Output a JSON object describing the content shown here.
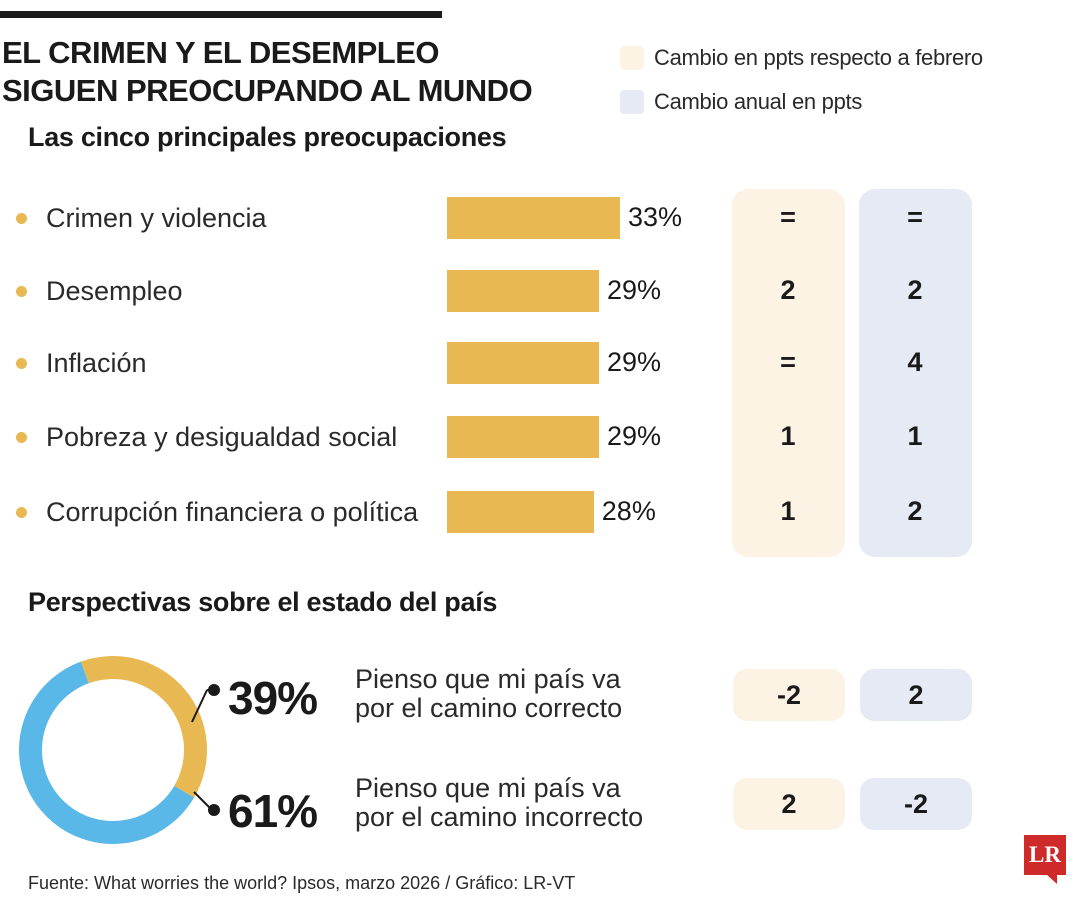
{
  "header": {
    "title_line1": "EL CRIMEN Y EL DESEMPLEO",
    "title_line2": "SIGUEN PREOCUPANDO AL MUNDO"
  },
  "legend": [
    {
      "label": "Cambio en ppts respecto a febrero",
      "color": "#fcf3e4"
    },
    {
      "label": "Cambio anual en ppts",
      "color": "#e6eaf5"
    }
  ],
  "colors": {
    "bar": "#e8b953",
    "bullet": "#e8b953",
    "monthly_bg": "#fcf3e4",
    "annual_bg": "#e6eaf5",
    "donut_right": "#e8b953",
    "donut_wrong": "#5ab8e8"
  },
  "chart_data": [
    {
      "type": "bar",
      "title": "Las cinco principales preocupaciones",
      "categories": [
        "Crimen y violencia",
        "Desempleo",
        "Inflación",
        "Pobreza y desigualdad social",
        "Corrupción financiera o política"
      ],
      "values": [
        33,
        29,
        29,
        29,
        28
      ],
      "value_labels": [
        "33%",
        "29%",
        "29%",
        "29%",
        "28%"
      ],
      "xlim": [
        0,
        33
      ],
      "monthly_change": [
        "=",
        "2",
        "=",
        "1",
        "1"
      ],
      "annual_change": [
        "=",
        "2",
        "4",
        "1",
        "2"
      ]
    },
    {
      "type": "pie",
      "title": "Perspectivas sobre el estado del país",
      "slices": [
        {
          "value": 39,
          "label": "39%",
          "statement_line1": "Pienso que mi país va",
          "statement_line2": "por el camino correcto",
          "monthly_change": "-2",
          "annual_change": "2"
        },
        {
          "value": 61,
          "label": "61%",
          "statement_line1": "Pienso que mi país va",
          "statement_line2": "por el camino incorrecto",
          "monthly_change": "2",
          "annual_change": "-2"
        }
      ]
    }
  ],
  "footer": {
    "source": "Fuente: What worries the world? Ipsos, marzo 2026 / Gráfico: LR-VT"
  },
  "logo": {
    "text": "LR"
  }
}
